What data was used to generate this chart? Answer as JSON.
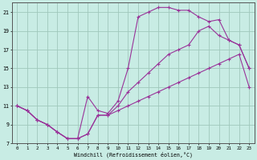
{
  "xlabel": "Windchill (Refroidissement éolien,°C)",
  "bg_color": "#c8ece4",
  "grid_color": "#a0c8bc",
  "line_color": "#993399",
  "xlim": [
    -0.5,
    23.5
  ],
  "ylim": [
    7,
    22
  ],
  "xticks": [
    0,
    1,
    2,
    3,
    4,
    5,
    6,
    7,
    8,
    9,
    10,
    11,
    12,
    13,
    14,
    15,
    16,
    17,
    18,
    19,
    20,
    21,
    22,
    23
  ],
  "yticks": [
    7,
    9,
    11,
    13,
    15,
    17,
    19,
    21
  ],
  "curve_top_x": [
    0,
    1,
    2,
    3,
    4,
    5,
    6,
    7,
    8,
    9,
    10,
    11,
    12,
    13,
    14,
    15,
    16,
    17,
    18,
    19,
    20,
    21,
    22,
    23
  ],
  "curve_top_y": [
    11.0,
    10.5,
    9.5,
    9.0,
    8.2,
    7.5,
    7.5,
    12.0,
    10.5,
    10.2,
    11.5,
    15.0,
    20.5,
    21.0,
    21.5,
    21.5,
    21.2,
    21.2,
    20.5,
    20.0,
    20.2,
    18.0,
    17.5,
    15.0
  ],
  "curve_mid_x": [
    0,
    1,
    2,
    3,
    4,
    5,
    6,
    7,
    8,
    9,
    10,
    11,
    12,
    13,
    14,
    15,
    16,
    17,
    18,
    19,
    20,
    21,
    22,
    23
  ],
  "curve_mid_y": [
    11.0,
    10.5,
    9.5,
    9.0,
    8.2,
    7.5,
    7.5,
    8.0,
    10.0,
    10.0,
    11.0,
    12.5,
    13.5,
    14.5,
    15.5,
    16.5,
    17.0,
    17.5,
    19.0,
    19.5,
    18.5,
    18.0,
    17.5,
    15.0
  ],
  "curve_bot_x": [
    0,
    1,
    2,
    3,
    4,
    5,
    6,
    7,
    8,
    9,
    10,
    11,
    12,
    13,
    14,
    15,
    16,
    17,
    18,
    19,
    20,
    21,
    22,
    23
  ],
  "curve_bot_y": [
    11.0,
    10.5,
    9.5,
    9.0,
    8.2,
    7.5,
    7.5,
    8.0,
    10.0,
    10.0,
    10.5,
    11.0,
    11.5,
    12.0,
    12.5,
    13.0,
    13.5,
    14.0,
    14.5,
    15.0,
    15.5,
    16.0,
    16.5,
    13.0
  ]
}
